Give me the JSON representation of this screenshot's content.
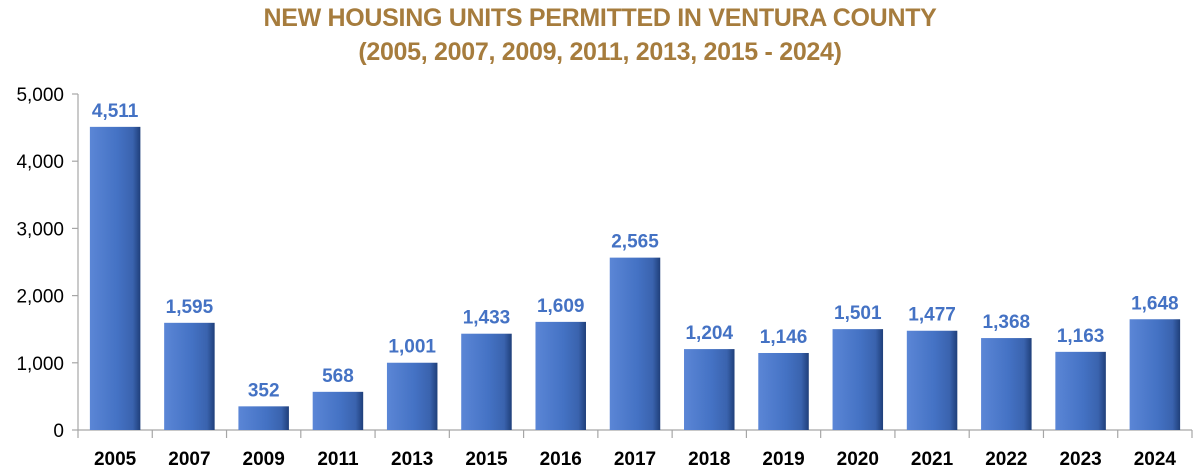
{
  "chart_data": {
    "type": "bar",
    "title": "NEW HOUSING UNITS PERMITTED IN VENTURA COUNTY",
    "subtitle": "(2005, 2007, 2009, 2011, 2013, 2015 - 2024)",
    "xlabel": "",
    "ylabel": "",
    "ylim": [
      0,
      5000
    ],
    "yticks": [
      0,
      1000,
      2000,
      3000,
      4000,
      5000
    ],
    "ytick_labels": [
      "0",
      "1,000",
      "2,000",
      "3,000",
      "4,000",
      "5,000"
    ],
    "categories": [
      "2005",
      "2007",
      "2009",
      "2011",
      "2013",
      "2015",
      "2016",
      "2017",
      "2018",
      "2019",
      "2020",
      "2021",
      "2022",
      "2023",
      "2024"
    ],
    "values": [
      4511,
      1595,
      352,
      568,
      1001,
      1433,
      1609,
      2565,
      1204,
      1146,
      1501,
      1477,
      1368,
      1163,
      1648
    ],
    "value_labels": [
      "4,511",
      "1,595",
      "352",
      "568",
      "1,001",
      "1,433",
      "1,609",
      "2,565",
      "1,204",
      "1,146",
      "1,501",
      "1,477",
      "1,368",
      "1,163",
      "1,648"
    ],
    "grid": false,
    "legend": "none",
    "colors": {
      "title": "#A67C3D",
      "bar": "#4472C4",
      "value_label": "#4472C4",
      "axis": "#A6A6A6",
      "tick_text": "#000000"
    }
  }
}
